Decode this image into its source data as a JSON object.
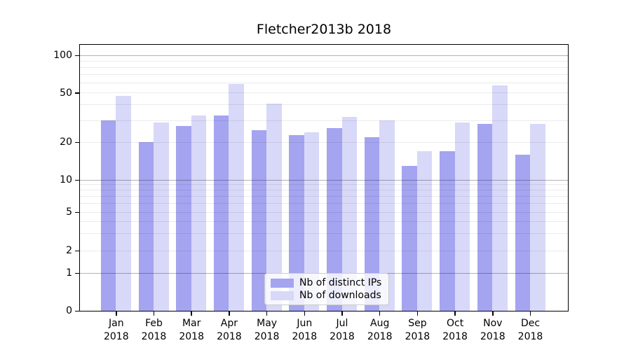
{
  "title": "Fletcher2013b 2018",
  "legend": {
    "items": [
      {
        "label": "Nb of distinct IPs",
        "color": "#a4a4f0"
      },
      {
        "label": "Nb of downloads",
        "color": "#d8d8f8"
      }
    ]
  },
  "y_axis": {
    "tick_labels": [
      "100",
      "50",
      "20",
      "10",
      "5",
      "2",
      "1",
      "0"
    ],
    "tick_values": [
      100,
      50,
      20,
      10,
      5,
      2,
      1,
      0
    ],
    "minor_values": [
      2,
      3,
      4,
      5,
      6,
      7,
      8,
      9,
      20,
      30,
      40,
      50,
      60,
      70,
      80,
      90
    ],
    "major_values": [
      1,
      10,
      100
    ]
  },
  "x_axis": {
    "months": [
      "Jan",
      "Feb",
      "Mar",
      "Apr",
      "May",
      "Jun",
      "Jul",
      "Aug",
      "Sep",
      "Oct",
      "Nov",
      "Dec"
    ],
    "year": "2018"
  },
  "chart_data": {
    "type": "bar",
    "title": "Fletcher2013b 2018",
    "categories": [
      "Jan 2018",
      "Feb 2018",
      "Mar 2018",
      "Apr 2018",
      "May 2018",
      "Jun 2018",
      "Jul 2018",
      "Aug 2018",
      "Sep 2018",
      "Oct 2018",
      "Nov 2018",
      "Dec 2018"
    ],
    "series": [
      {
        "name": "Nb of distinct IPs",
        "color": "#a4a4f0",
        "values": [
          30,
          20,
          27,
          33,
          25,
          23,
          26,
          22,
          13,
          17,
          28,
          16
        ]
      },
      {
        "name": "Nb of downloads",
        "color": "#d8d8f8",
        "values": [
          47,
          29,
          33,
          59,
          41,
          24,
          32,
          30,
          17,
          29,
          57,
          28
        ]
      }
    ],
    "xlabel": "",
    "ylabel": "",
    "yscale": "symlog",
    "ylim": [
      0,
      121
    ],
    "grid": "both",
    "grid_above_bars": true,
    "legend_position": "lower center"
  }
}
